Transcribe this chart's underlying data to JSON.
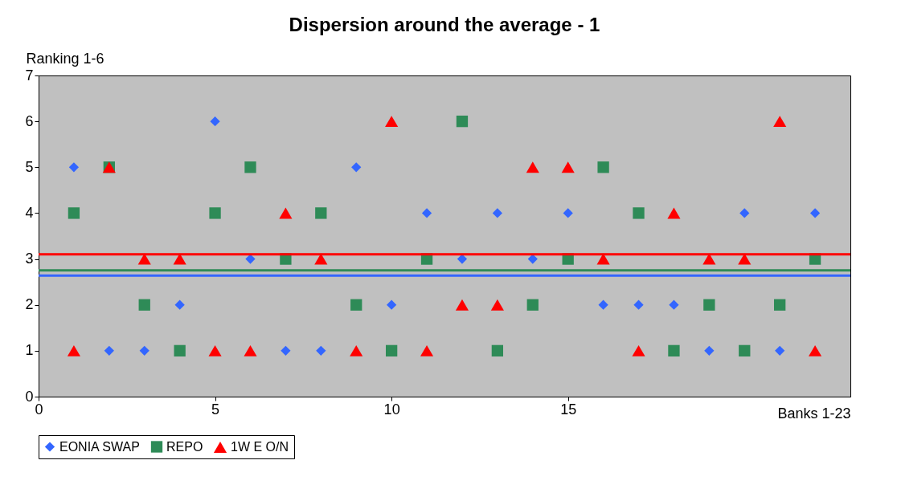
{
  "chart_data": {
    "type": "scatter",
    "title": "Dispersion around the average - 1",
    "xlabel": "Banks 1-23",
    "ylabel": "Ranking 1-6",
    "x": [
      1,
      2,
      3,
      4,
      5,
      6,
      7,
      8,
      9,
      10,
      11,
      12,
      13,
      14,
      15,
      16,
      17,
      18,
      19,
      20,
      21,
      22
    ],
    "series": [
      {
        "name": "EONIA SWAP",
        "color": "#3366ff",
        "marker": "diamond",
        "values": [
          5,
          1,
          1,
          2,
          6,
          3,
          1,
          1,
          5,
          2,
          4,
          3,
          4,
          3,
          4,
          2,
          2,
          2,
          1,
          4,
          1,
          4
        ]
      },
      {
        "name": "REPO",
        "color": "#2e8b57",
        "marker": "square",
        "values": [
          4,
          5,
          2,
          1,
          4,
          5,
          3,
          4,
          2,
          1,
          3,
          6,
          1,
          2,
          3,
          5,
          4,
          1,
          2,
          1,
          2,
          3
        ]
      },
      {
        "name": "1W E O/N",
        "color": "#ff0000",
        "marker": "triangle",
        "values": [
          1,
          5,
          3,
          3,
          1,
          1,
          4,
          3,
          1,
          6,
          1,
          2,
          2,
          5,
          5,
          3,
          1,
          4,
          3,
          3,
          6,
          1
        ]
      }
    ],
    "ref_lines": [
      {
        "axis": "y",
        "value": 3.1,
        "color": "#ff0000",
        "line_style": "solid"
      },
      {
        "axis": "y",
        "value": 2.75,
        "color": "#2e8b57",
        "line_style": "solid"
      },
      {
        "axis": "y",
        "value": 2.64,
        "color": "#3366ff",
        "line_style": "solid"
      }
    ],
    "xlim": [
      0,
      23
    ],
    "xticks": [
      0,
      5,
      10,
      15
    ],
    "ylim": [
      0,
      7
    ],
    "yticks": [
      0,
      1,
      2,
      3,
      4,
      5,
      6,
      7
    ],
    "grid": false,
    "legend": "bottom"
  }
}
